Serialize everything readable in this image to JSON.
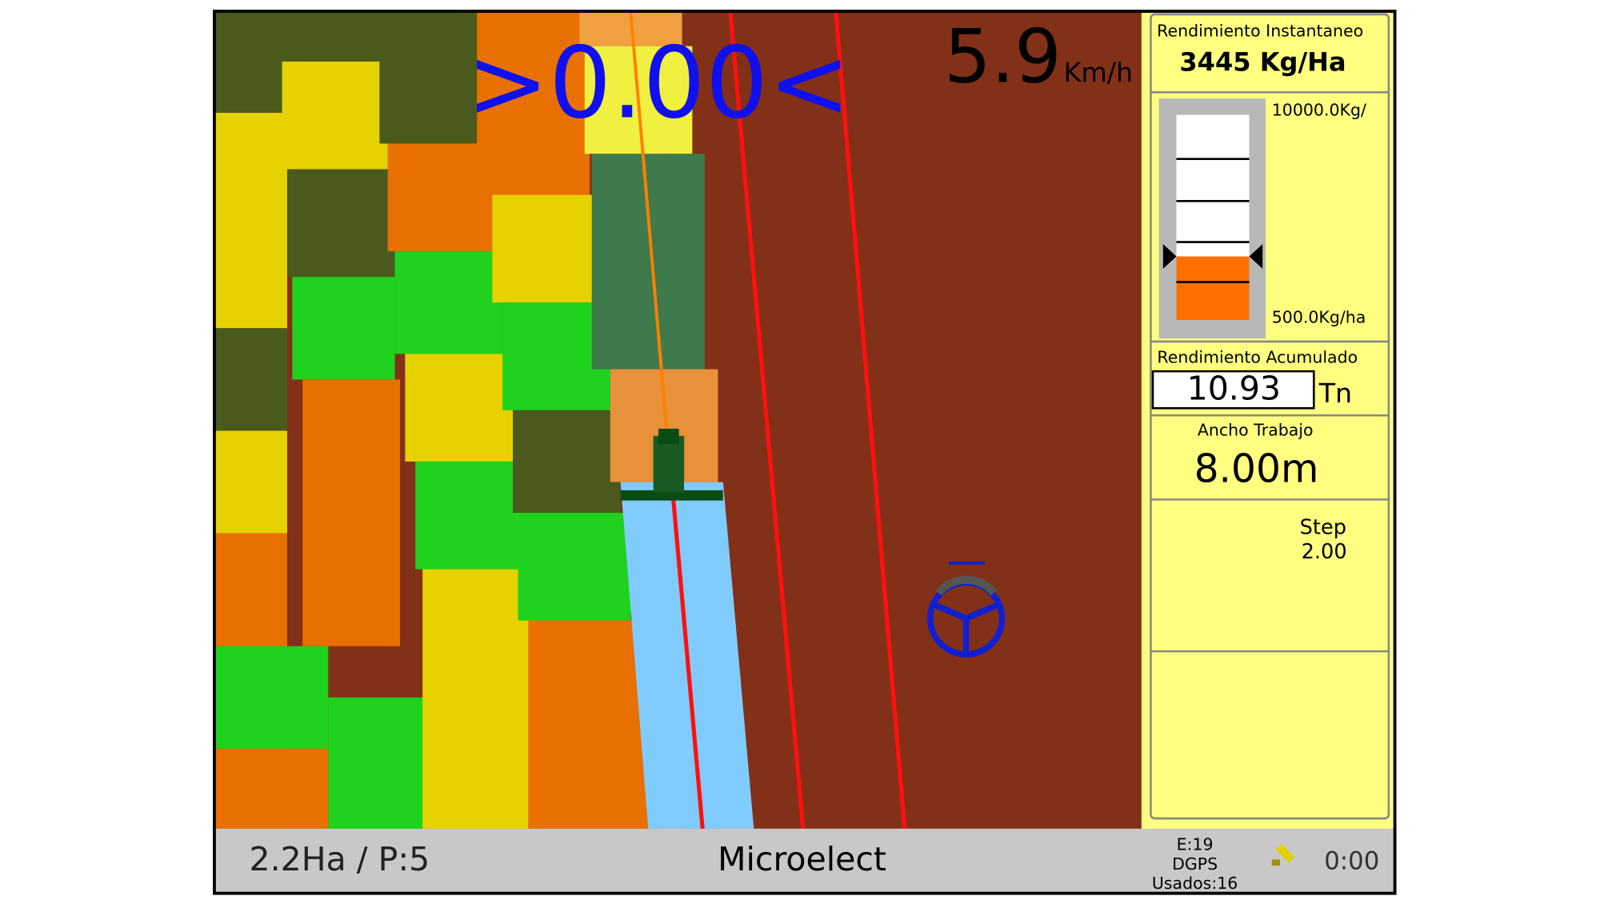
{
  "header": {
    "guidance_offset": ">0.00<",
    "speed": "5.9",
    "speed_unit": "Km/h"
  },
  "panel": {
    "instant": {
      "label": "Rendimiento Instantaneo",
      "value": 3445,
      "value_label": "3445 Kg/Ha"
    },
    "gauge": {
      "max": {
        "value": 10000,
        "label": "10000.0Kg/"
      },
      "min": {
        "value": 500,
        "label": "500.0Kg/ha"
      }
    },
    "accumulated": {
      "label": "Rendimiento Acumulado",
      "value": "10.93",
      "unit": "Tn"
    },
    "width": {
      "label": "Ancho Trabajo",
      "value": "8.00m"
    },
    "step": {
      "label": "Step",
      "value": "2.00"
    }
  },
  "status": {
    "area": "2.2Ha / P:5",
    "brand": "Microelect",
    "gps_e": "E:19",
    "gps_mode": "DGPS",
    "gps_used": "Usados:16",
    "time": "0:00"
  }
}
